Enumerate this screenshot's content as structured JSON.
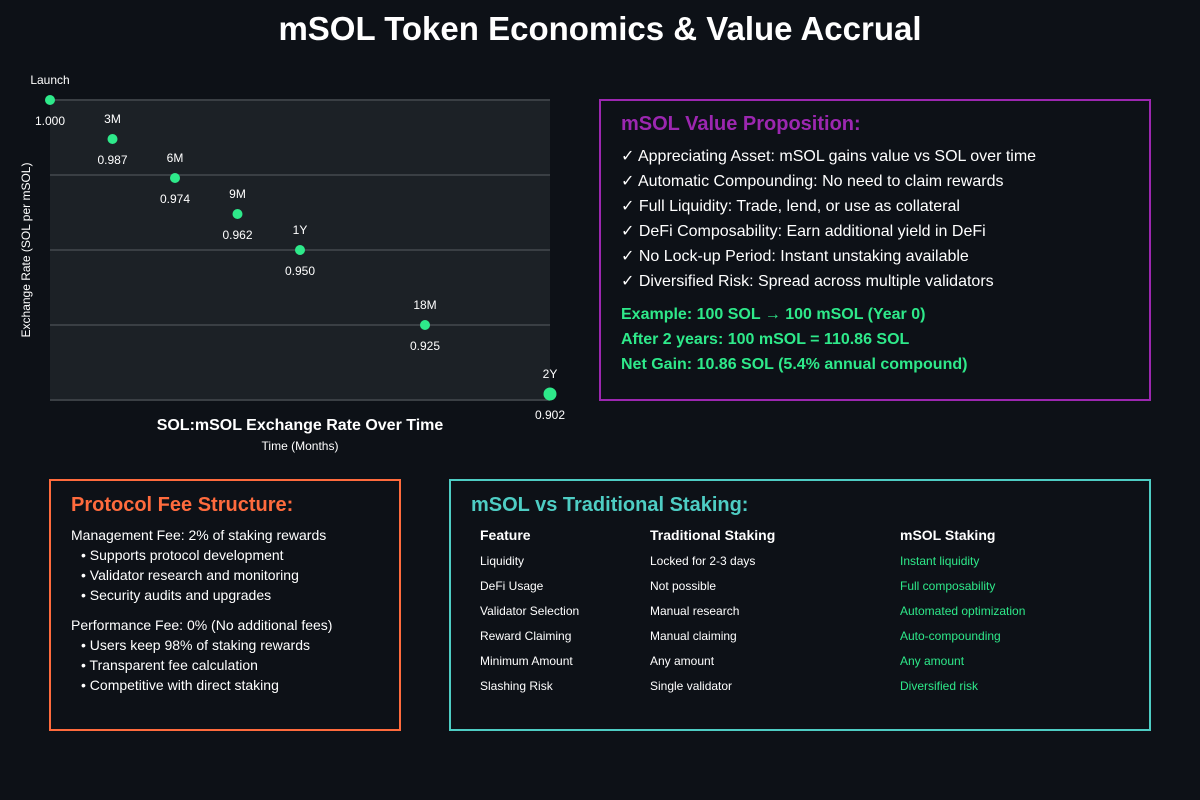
{
  "title": "mSOL Token Economics & Value Accrual",
  "chart_data": {
    "type": "scatter",
    "title": "SOL:mSOL Exchange Rate Over Time",
    "xlabel": "Time (Months)",
    "ylabel": "Exchange Rate (SOL per mSOL)",
    "points": [
      {
        "label": "Launch",
        "month": 0,
        "value": 1.0,
        "value_label": "1.000"
      },
      {
        "label": "3M",
        "month": 3,
        "value": 0.987,
        "value_label": "0.987"
      },
      {
        "label": "6M",
        "month": 6,
        "value": 0.974,
        "value_label": "0.974"
      },
      {
        "label": "9M",
        "month": 9,
        "value": 0.962,
        "value_label": "0.962"
      },
      {
        "label": "1Y",
        "month": 12,
        "value": 0.95,
        "value_label": "0.950"
      },
      {
        "label": "18M",
        "month": 18,
        "value": 0.925,
        "value_label": "0.925"
      },
      {
        "label": "2Y",
        "month": 24,
        "value": 0.902,
        "value_label": "0.902"
      }
    ],
    "xlim": [
      0,
      24
    ],
    "ylim": [
      0.9,
      1.0
    ],
    "grid": true,
    "colors": {
      "point": "#2ee98a",
      "plot_bg": "#1c2126",
      "grid": "#3a3f44"
    }
  },
  "value_prop": {
    "title": "mSOL Value Proposition:",
    "items": [
      "✓ Appreciating Asset: mSOL gains value vs SOL over time",
      "✓ Automatic Compounding: No need to claim rewards",
      "✓ Full Liquidity: Trade, lend, or use as collateral",
      "✓ DeFi Composability: Earn additional yield in DeFi",
      "✓ No Lock-up Period: Instant unstaking available",
      "✓ Diversified Risk: Spread across multiple validators"
    ],
    "example": [
      "Example: 100 SOL → 100 mSOL (Year 0)",
      "After 2 years: 100 mSOL = 110.86 SOL",
      "Net Gain: 10.86 SOL (5.4% annual compound)"
    ]
  },
  "fees": {
    "title": "Protocol Fee Structure:",
    "management": "Management Fee: 2% of staking rewards",
    "management_bullets": [
      "• Supports protocol development",
      "• Validator research and monitoring",
      "• Security audits and upgrades"
    ],
    "performance": "Performance Fee: 0% (No additional fees)",
    "performance_bullets": [
      "• Users keep 98% of staking rewards",
      "• Transparent fee calculation",
      "• Competitive with direct staking"
    ]
  },
  "comparison": {
    "title": "mSOL vs Traditional Staking:",
    "headers": [
      "Feature",
      "Traditional Staking",
      "mSOL Staking"
    ],
    "rows": [
      [
        "Liquidity",
        "Locked for 2-3 days",
        "Instant liquidity"
      ],
      [
        "DeFi Usage",
        "Not possible",
        "Full composability"
      ],
      [
        "Validator Selection",
        "Manual research",
        "Automated optimization"
      ],
      [
        "Reward Claiming",
        "Manual claiming",
        "Auto-compounding"
      ],
      [
        "Minimum Amount",
        "Any amount",
        "Any amount"
      ],
      [
        "Slashing Risk",
        "Single validator",
        "Diversified risk"
      ]
    ]
  }
}
